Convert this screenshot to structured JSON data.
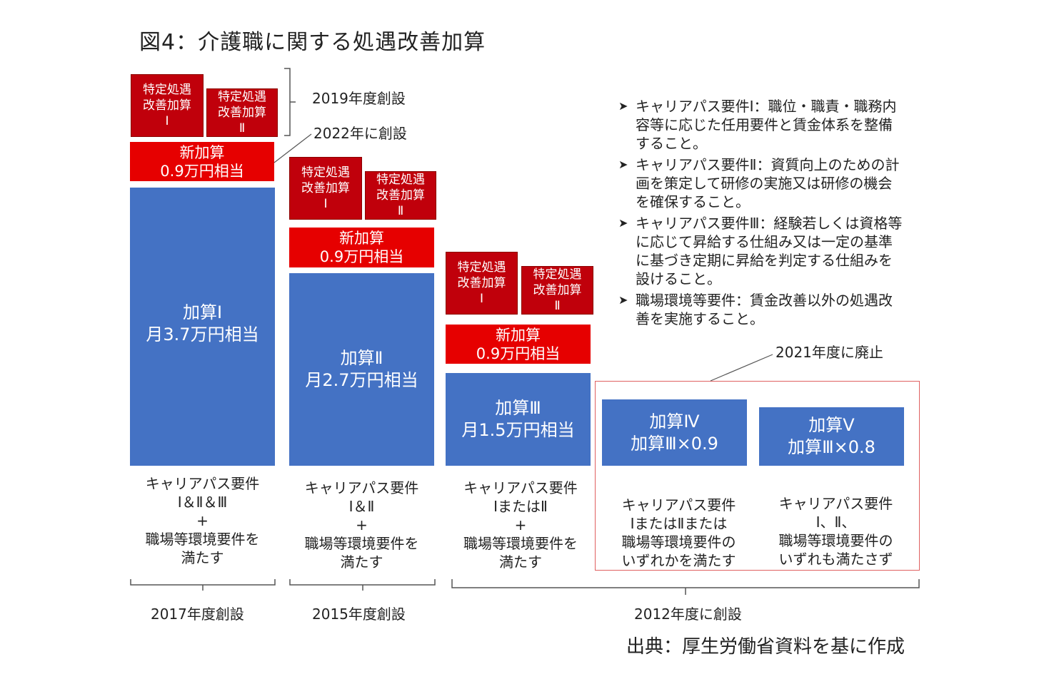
{
  "title": "図4：介護職に関する処遇改善加算",
  "blocks": {
    "kasan1": {
      "line1": "加算Ⅰ",
      "line2": "月3.7万円相当"
    },
    "kasan2": {
      "line1": "加算Ⅱ",
      "line2": "月2.7万円相当"
    },
    "kasan3": {
      "line1": "加算Ⅲ",
      "line2": "月1.5万円相当"
    },
    "kasan4": {
      "line1": "加算Ⅳ",
      "line2": "加算Ⅲ×0.9"
    },
    "kasan5": {
      "line1": "加算Ⅴ",
      "line2": "加算Ⅲ×0.8"
    },
    "shin": {
      "line1": "新加算",
      "line2": "0.9万円相当"
    },
    "tokutei1": {
      "line1": "特定処遇",
      "line2": "改善加算",
      "line3": "Ⅰ"
    },
    "tokutei2": {
      "line1": "特定処遇",
      "line2": "改善加算",
      "line3": "Ⅱ"
    }
  },
  "requirements": {
    "col1": [
      "キャリアパス要件",
      "Ⅰ＆Ⅱ＆Ⅲ",
      "+",
      "職場等環境要件を",
      "満たす"
    ],
    "col2": [
      "キャリアパス要件",
      "Ⅰ＆Ⅱ",
      "+",
      "職場等環境要件を",
      "満たす"
    ],
    "col3": [
      "キャリアパス要件",
      "ⅠまたはⅡ",
      "+",
      "職場等環境要件を",
      "満たす"
    ],
    "col4": [
      "キャリアパス要件",
      "ⅠまたはⅡまたは",
      "職場等環境要件の",
      "いずれかを満たす"
    ],
    "col5": [
      "キャリアパス要件",
      "Ⅰ、Ⅱ、",
      "職場等環境要件の",
      "いずれも満たさず"
    ]
  },
  "annotations": {
    "created_2019": "2019年度創設",
    "created_2022": "2022年に創設",
    "abolished_2021": "2021年度に廃止"
  },
  "bottom_labels": {
    "y2017": "2017年度創設",
    "y2015": "2015年度創設",
    "y2012": "2012年度に創設"
  },
  "notes": [
    "キャリアパス要件Ⅰ：職位・職責・職務内容等に応じた任用要件と賃金体系を整備すること。",
    "キャリアパス要件Ⅱ：資質向上のための計画を策定して研修の実施又は研修の機会を確保すること。",
    "キャリアパス要件Ⅲ：経験若しくは資格等に応じて昇給する仕組み又は一定の基準に基づき定期に昇給を判定する仕組みを設けること。",
    "職場環境等要件：賃金改善以外の処遇改善を実施すること。"
  ],
  "source": "出典：厚生労働省資料を基に作成",
  "colors": {
    "blue": "#4472c4",
    "red": "#e60000",
    "dark_red": "#c0000b",
    "box_border": "#e06060"
  }
}
